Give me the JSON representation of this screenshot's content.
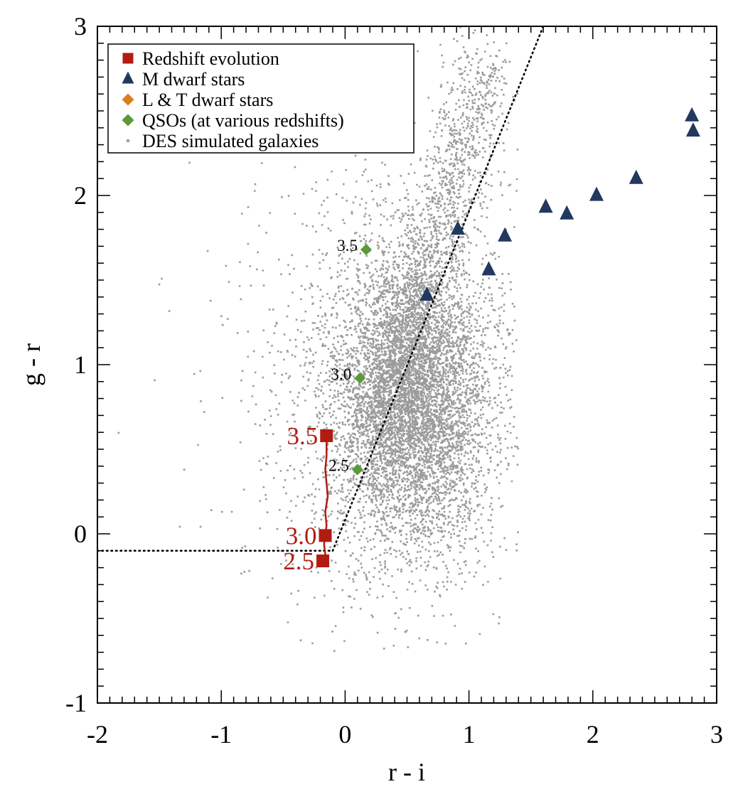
{
  "chart_data": {
    "type": "scatter",
    "title": "",
    "xlabel": "r - i",
    "ylabel": "g - r",
    "xlim": [
      -2,
      3
    ],
    "ylim": [
      -1,
      3
    ],
    "xticks": [
      "-2",
      "-1",
      "0",
      "1",
      "2",
      "3"
    ],
    "yticks": [
      "-1",
      "0",
      "1",
      "2",
      "3"
    ],
    "grid": false,
    "legend_position": "top-left",
    "colors": {
      "redshift": "#b01c12",
      "mdwarf": "#22385f",
      "ltdwarf": "#d8801e",
      "qso": "#5b9a3a",
      "galaxy": "#9b9b9b",
      "guide": "#000000"
    },
    "legend": [
      {
        "label": "Redshift evolution",
        "marker": "square",
        "color": "#b01c12"
      },
      {
        "label": "M dwarf stars",
        "marker": "triangle",
        "color": "#22385f"
      },
      {
        "label": "L & T dwarf stars",
        "marker": "diamond",
        "color": "#d8801e"
      },
      {
        "label": "QSOs (at various redshifts)",
        "marker": "diamond",
        "color": "#5b9a3a"
      },
      {
        "label": "DES simulated galaxies",
        "marker": "dot",
        "color": "#9b9b9b"
      }
    ],
    "series": [
      {
        "name": "Redshift evolution",
        "marker": "square",
        "points": [
          {
            "x": -0.18,
            "y": -0.16,
            "label": "2.5"
          },
          {
            "x": -0.16,
            "y": -0.01,
            "label": "3.0"
          },
          {
            "x": -0.15,
            "y": 0.58,
            "label": "3.5"
          }
        ],
        "track": [
          [
            -0.18,
            -0.16
          ],
          [
            -0.16,
            -0.12
          ],
          [
            -0.17,
            -0.06
          ],
          [
            -0.16,
            -0.01
          ],
          [
            -0.15,
            0.05
          ],
          [
            -0.16,
            0.13
          ],
          [
            -0.14,
            0.22
          ],
          [
            -0.15,
            0.3
          ],
          [
            -0.16,
            0.38
          ],
          [
            -0.15,
            0.46
          ],
          [
            -0.15,
            0.53
          ],
          [
            -0.15,
            0.58
          ]
        ]
      },
      {
        "name": "M dwarf stars",
        "marker": "triangle",
        "points": [
          {
            "x": 0.66,
            "y": 1.41
          },
          {
            "x": 0.91,
            "y": 1.8
          },
          {
            "x": 1.16,
            "y": 1.56
          },
          {
            "x": 1.29,
            "y": 1.76
          },
          {
            "x": 1.62,
            "y": 1.93
          },
          {
            "x": 1.79,
            "y": 1.89
          },
          {
            "x": 2.03,
            "y": 2.0
          },
          {
            "x": 2.35,
            "y": 2.1
          },
          {
            "x": 2.8,
            "y": 2.47
          },
          {
            "x": 2.81,
            "y": 2.38
          }
        ]
      },
      {
        "name": "QSOs (at various redshifts)",
        "marker": "diamond",
        "points": [
          {
            "x": 0.1,
            "y": 0.38,
            "label": "2.5"
          },
          {
            "x": 0.12,
            "y": 0.92,
            "label": "3.0"
          },
          {
            "x": 0.17,
            "y": 1.68,
            "label": "3.5"
          }
        ]
      },
      {
        "name": "DES simulated galaxies",
        "marker": "dot",
        "distribution": {
          "count": 9000,
          "core": {
            "center_x": 0.55,
            "center_y": 0.8,
            "sigma_x": 0.3,
            "sigma_y": 0.42
          },
          "x_range": [
            -1.9,
            1.4
          ],
          "y_range": [
            -0.7,
            3.0
          ]
        }
      }
    ],
    "guide_lines": [
      {
        "name": "selection-horizontal",
        "points": [
          [
            -2.0,
            -0.1
          ],
          [
            -0.1,
            -0.1
          ]
        ]
      },
      {
        "name": "selection-diagonal",
        "points": [
          [
            -0.1,
            -0.1
          ],
          [
            1.6,
            3.0
          ]
        ]
      }
    ]
  }
}
